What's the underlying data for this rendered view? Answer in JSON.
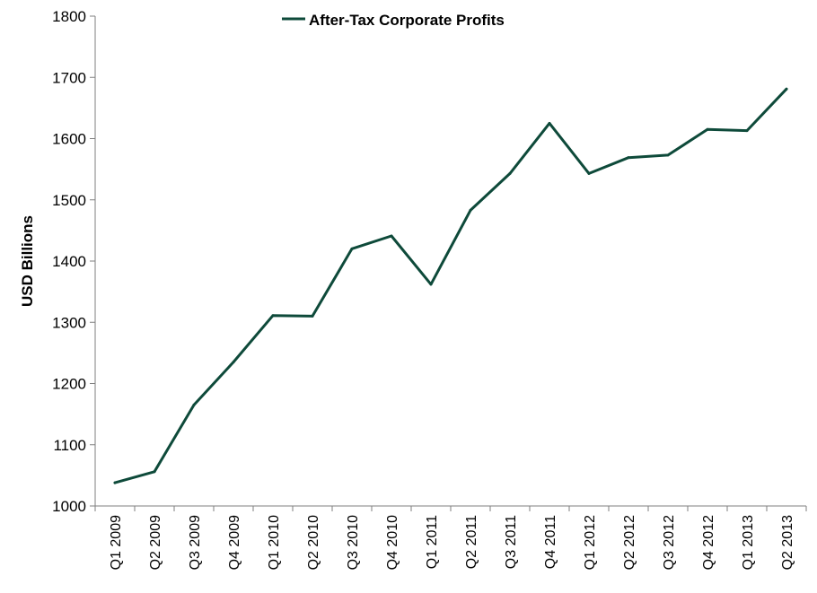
{
  "chart_data": {
    "type": "line",
    "title": "",
    "xlabel": "",
    "ylabel": "USD Billions",
    "ylim": [
      1000,
      1800
    ],
    "yticks": [
      1000,
      1100,
      1200,
      1300,
      1400,
      1500,
      1600,
      1700,
      1800
    ],
    "grid": false,
    "legend_position": "top-center",
    "categories": [
      "Q1 2009",
      "Q2 2009",
      "Q3 2009",
      "Q4 2009",
      "Q1 2010",
      "Q2 2010",
      "Q3 2010",
      "Q4 2010",
      "Q1 2011",
      "Q2 2011",
      "Q3 2011",
      "Q4 2011",
      "Q1 2012",
      "Q2 2012",
      "Q3 2012",
      "Q4 2012",
      "Q1 2013",
      "Q2 2013"
    ],
    "series": [
      {
        "name": "After-Tax Corporate Profits",
        "color": "#0e4a3a",
        "values": [
          1038,
          1056,
          1165,
          1235,
          1311,
          1310,
          1420,
          1441,
          1362,
          1483,
          1543,
          1625,
          1543,
          1569,
          1573,
          1615,
          1613,
          1681
        ]
      }
    ]
  }
}
